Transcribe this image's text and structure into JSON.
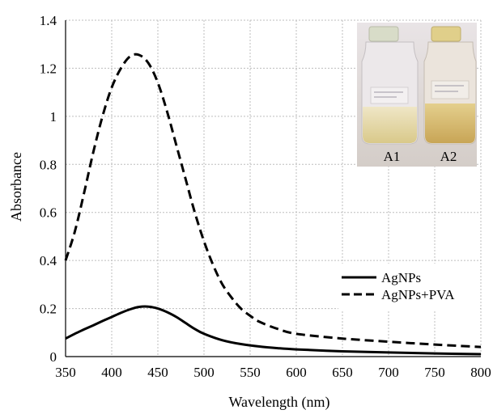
{
  "chart_data": {
    "type": "line",
    "xlabel": "Wavelength (nm)",
    "ylabel": "Absorbance",
    "xlim": [
      350,
      800
    ],
    "ylim": [
      0,
      1.4
    ],
    "x_ticks": [
      "350",
      "400",
      "450",
      "500",
      "550",
      "600",
      "650",
      "700",
      "750",
      "800"
    ],
    "y_ticks": [
      "0",
      "0.2",
      "0.4",
      "0.6",
      "0.8",
      "1",
      "1.2",
      "1.4"
    ],
    "grid": true,
    "legend_position": "right",
    "series": [
      {
        "name": "AgNPs",
        "style": "solid",
        "color": "#000000",
        "x": [
          350,
          360,
          370,
          380,
          390,
          400,
          410,
          420,
          430,
          440,
          450,
          460,
          470,
          480,
          490,
          500,
          520,
          540,
          560,
          580,
          600,
          650,
          700,
          750,
          800
        ],
        "y": [
          0.075,
          0.095,
          0.113,
          0.13,
          0.148,
          0.165,
          0.182,
          0.197,
          0.207,
          0.208,
          0.2,
          0.185,
          0.165,
          0.14,
          0.115,
          0.095,
          0.068,
          0.052,
          0.042,
          0.035,
          0.03,
          0.022,
          0.017,
          0.013,
          0.01
        ]
      },
      {
        "name": "AgNPs+PVA",
        "style": "dashed",
        "color": "#000000",
        "x": [
          350,
          360,
          370,
          380,
          390,
          400,
          410,
          420,
          430,
          440,
          450,
          460,
          470,
          480,
          490,
          500,
          510,
          520,
          530,
          540,
          550,
          560,
          580,
          600,
          650,
          700,
          750,
          800
        ],
        "y": [
          0.4,
          0.52,
          0.68,
          0.85,
          1.0,
          1.12,
          1.2,
          1.25,
          1.255,
          1.22,
          1.14,
          1.02,
          0.88,
          0.74,
          0.6,
          0.48,
          0.38,
          0.3,
          0.245,
          0.2,
          0.17,
          0.145,
          0.115,
          0.095,
          0.075,
          0.062,
          0.05,
          0.04
        ]
      }
    ]
  },
  "inset": {
    "labels": [
      "A1",
      "A2"
    ]
  }
}
